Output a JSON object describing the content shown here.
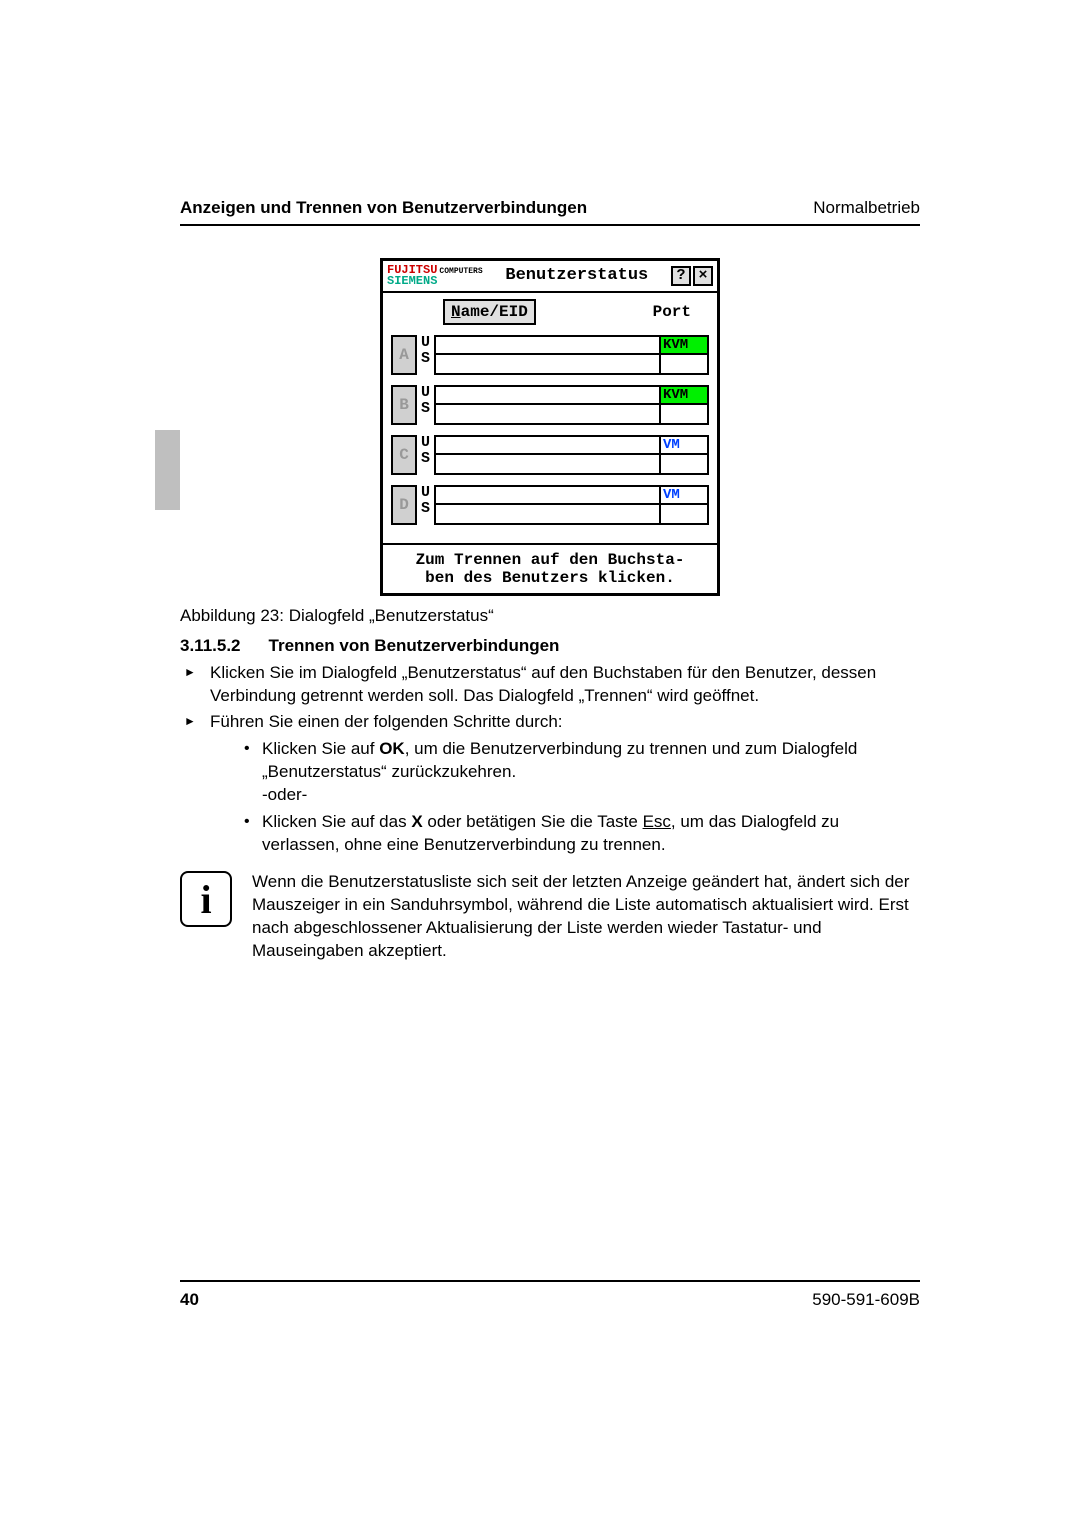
{
  "header": {
    "left": "Anzeigen und Trennen von Benutzerverbindungen",
    "right": "Normalbetrieb"
  },
  "dialog": {
    "logo_top": "FUJITSU",
    "logo_bottom": "SIEMENS",
    "logo_small": "COMPUTERS",
    "title": "Benutzerstatus",
    "help_label": "?",
    "close_label": "×",
    "col_name_prefix": "N",
    "col_name_rest": "ame/EID",
    "col_port": "Port",
    "rows": [
      {
        "letter": "A",
        "port": "KVM",
        "port_class": "kvm-green"
      },
      {
        "letter": "B",
        "port": "KVM",
        "port_class": "kvm-green"
      },
      {
        "letter": "C",
        "port": "VM",
        "port_class": "vm-blue"
      },
      {
        "letter": "D",
        "port": "VM",
        "port_class": "vm-blue"
      }
    ],
    "u_label": "U",
    "s_label": "S",
    "footer_line1": "Zum Trennen auf den Buchsta-",
    "footer_line2": "ben des Benutzers klicken."
  },
  "caption": "Abbildung 23: Dialogfeld „Benutzerstatus“",
  "section": {
    "number": "3.11.5.2",
    "title": "Trennen von Benutzerverbindungen"
  },
  "steps": {
    "s1": "Klicken Sie im Dialogfeld „Benutzerstatus“ auf den Buchstaben für den Benutzer, dessen Verbindung getrennt werden soll. Das Dialogfeld „Trennen“ wird geöffnet.",
    "s2": "Führen Sie einen der folgenden Schritte durch:",
    "s2a_pre": "Klicken Sie auf ",
    "s2a_bold": "OK",
    "s2a_post": ", um die Benutzerverbindung zu trennen und zum Dialogfeld „Benutzerstatus“ zurückzukehren.",
    "oder": "-oder-",
    "s2b_pre": "Klicken Sie auf das ",
    "s2b_x": "X",
    "s2b_mid": " oder betätigen Sie die Taste ",
    "s2b_esc": "Esc",
    "s2b_post": ", um das Dialogfeld zu verlassen, ohne eine Benutzerverbindung zu trennen."
  },
  "info": "Wenn die Benutzerstatusliste sich seit der letzten Anzeige geändert hat, ändert sich der Mauszeiger in ein Sanduhrsymbol, während die Liste automatisch aktualisiert wird. Erst nach abgeschlossener Aktualisierung der Liste werden wieder Tastatur- und Mauseingaben akzeptiert.",
  "footer": {
    "page": "40",
    "doc": "590-591-609B"
  }
}
